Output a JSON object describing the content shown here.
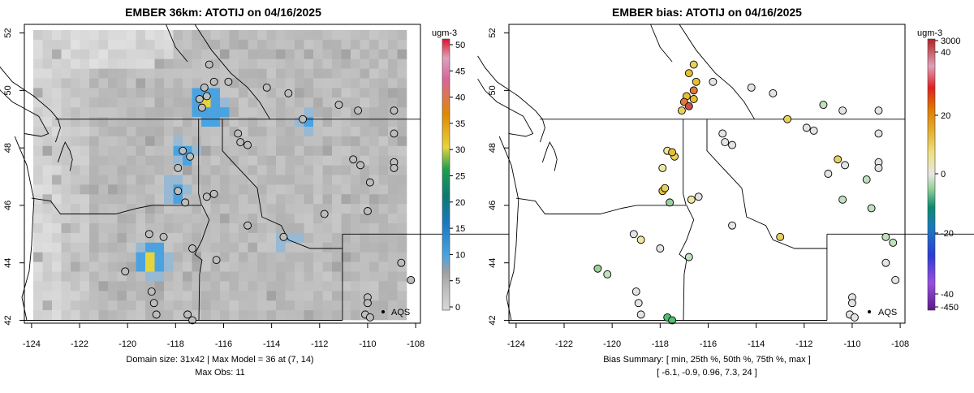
{
  "left_panel": {
    "title": "EMBER 36km: ATOTIJ on 04/16/2025",
    "legend_unit": "ugm-3",
    "legend_ticks": [
      "0",
      "5",
      "10",
      "15",
      "20",
      "25",
      "30",
      "35",
      "40",
      "45",
      "50"
    ],
    "aqs_label": "AQS",
    "footer_line1": "Domain size: 31x42 | Max Model = 36 at (7, 14)",
    "footer_line2": "Max Obs: 11"
  },
  "right_panel": {
    "title": "EMBER bias: ATOTIJ on 04/16/2025",
    "legend_unit": "ugm-3",
    "legend_ticks": [
      "3000",
      "40",
      "20",
      "0",
      "-20",
      "-40",
      "-450"
    ],
    "aqs_label": "AQS",
    "footer_line1": "Bias Summary: [ min, 25th %, 50th %, 75th %, max ]",
    "footer_line2": "[ -6.1,   -0.9,   0.96,   7.3,   24 ]"
  },
  "axes": {
    "x_ticks": [
      "-124",
      "-122",
      "-120",
      "-118",
      "-116",
      "-114",
      "-112",
      "-110",
      "-108"
    ],
    "y_ticks": [
      "42",
      "44",
      "46",
      "48",
      "50",
      "52"
    ]
  },
  "colors": {
    "model_gray": "#cccccc",
    "model_blue": "#4aa3e0",
    "model_orange": "#e08a00",
    "model_yellow": "#e6d43c",
    "bias_max": "#b22222",
    "bias_min": "#5a1a8a"
  },
  "chart_data": [
    {
      "type": "heatmap",
      "title": "EMBER 36km: ATOTIJ on 04/16/2025",
      "xlim": [
        -124.3,
        -107.8
      ],
      "ylim": [
        41.9,
        52.3
      ],
      "x_ticks": [
        -124,
        -122,
        -120,
        -118,
        -116,
        -114,
        -112,
        -110,
        -108
      ],
      "y_ticks": [
        42,
        44,
        46,
        48,
        50,
        52
      ],
      "colorbar": {
        "label": "ugm-3",
        "min": 0,
        "max": 50,
        "ticks": [
          0,
          5,
          10,
          15,
          20,
          25,
          30,
          35,
          40,
          45,
          50
        ]
      },
      "max_model": 36,
      "max_obs": 11,
      "domain_size": "31x42",
      "hotspots": [
        {
          "lon": -118.95,
          "lat": 44.1,
          "value": 36
        },
        {
          "lon": -116.8,
          "lat": 49.6,
          "value": 29
        },
        {
          "lon": -116.55,
          "lat": 49.35,
          "value": 28
        },
        {
          "lon": -117.6,
          "lat": 47.8,
          "value": 14
        },
        {
          "lon": -118.0,
          "lat": 46.5,
          "value": 13
        },
        {
          "lon": -112.6,
          "lat": 48.9,
          "value": 12
        },
        {
          "lon": -113.4,
          "lat": 44.9,
          "value": 11
        }
      ],
      "stations": [
        {
          "lon": -116.6,
          "lat": 50.9
        },
        {
          "lon": -116.8,
          "lat": 50.1
        },
        {
          "lon": -117.0,
          "lat": 49.7
        },
        {
          "lon": -116.7,
          "lat": 49.8
        },
        {
          "lon": -116.9,
          "lat": 49.4
        },
        {
          "lon": -116.4,
          "lat": 50.3
        },
        {
          "lon": -115.8,
          "lat": 50.3
        },
        {
          "lon": -114.2,
          "lat": 50.1
        },
        {
          "lon": -113.3,
          "lat": 49.9
        },
        {
          "lon": -112.7,
          "lat": 49.0
        },
        {
          "lon": -111.2,
          "lat": 49.5
        },
        {
          "lon": -110.4,
          "lat": 49.3
        },
        {
          "lon": -108.9,
          "lat": 49.3
        },
        {
          "lon": -108.9,
          "lat": 48.5
        },
        {
          "lon": -115.4,
          "lat": 48.5
        },
        {
          "lon": -115.3,
          "lat": 48.2
        },
        {
          "lon": -115.0,
          "lat": 48.1
        },
        {
          "lon": -117.7,
          "lat": 47.9
        },
        {
          "lon": -117.4,
          "lat": 47.7
        },
        {
          "lon": -117.9,
          "lat": 47.3
        },
        {
          "lon": -110.6,
          "lat": 47.6
        },
        {
          "lon": -110.3,
          "lat": 47.4
        },
        {
          "lon": -108.9,
          "lat": 47.5
        },
        {
          "lon": -108.9,
          "lat": 47.3
        },
        {
          "lon": -117.9,
          "lat": 46.5
        },
        {
          "lon": -117.6,
          "lat": 46.1
        },
        {
          "lon": -116.7,
          "lat": 46.3
        },
        {
          "lon": -116.4,
          "lat": 46.4
        },
        {
          "lon": -117.3,
          "lat": 44.5
        },
        {
          "lon": -118.5,
          "lat": 44.9
        },
        {
          "lon": -119.1,
          "lat": 45.0
        },
        {
          "lon": -120.1,
          "lat": 43.7
        },
        {
          "lon": -116.3,
          "lat": 44.1
        },
        {
          "lon": -115.0,
          "lat": 45.3
        },
        {
          "lon": -113.5,
          "lat": 44.9
        },
        {
          "lon": -111.8,
          "lat": 45.7
        },
        {
          "lon": -110.0,
          "lat": 45.8
        },
        {
          "lon": -109.9,
          "lat": 46.8
        },
        {
          "lon": -108.6,
          "lat": 44.0
        },
        {
          "lon": -108.2,
          "lat": 43.4
        },
        {
          "lon": -119.0,
          "lat": 43.0
        },
        {
          "lon": -118.9,
          "lat": 42.6
        },
        {
          "lon": -118.8,
          "lat": 42.2
        },
        {
          "lon": -117.5,
          "lat": 42.2
        },
        {
          "lon": -117.3,
          "lat": 42.0
        },
        {
          "lon": -110.0,
          "lat": 42.8
        },
        {
          "lon": -110.0,
          "lat": 42.6
        },
        {
          "lon": -110.1,
          "lat": 42.2
        },
        {
          "lon": -109.9,
          "lat": 42.1
        }
      ]
    },
    {
      "type": "scatter",
      "title": "EMBER bias: ATOTIJ on 04/16/2025",
      "xlim": [
        -124.3,
        -107.8
      ],
      "ylim": [
        41.9,
        52.3
      ],
      "x_ticks": [
        -124,
        -122,
        -120,
        -118,
        -116,
        -114,
        -112,
        -110,
        -108
      ],
      "y_ticks": [
        42,
        44,
        46,
        48,
        50,
        52
      ],
      "colorbar": {
        "label": "ugm-3",
        "ticks": [
          3000,
          40,
          20,
          0,
          -20,
          -40,
          -450
        ]
      },
      "bias_summary": {
        "min": -6.1,
        "p25": -0.9,
        "p50": 0.96,
        "p75": 7.3,
        "max": 24
      },
      "stations": [
        {
          "lon": -116.6,
          "lat": 50.9,
          "bias": 7
        },
        {
          "lon": -116.8,
          "lat": 50.6,
          "bias": 9
        },
        {
          "lon": -116.5,
          "lat": 50.3,
          "bias": 10
        },
        {
          "lon": -116.6,
          "lat": 50.0,
          "bias": 18
        },
        {
          "lon": -116.9,
          "lat": 49.8,
          "bias": 10
        },
        {
          "lon": -116.6,
          "lat": 49.7,
          "bias": 12
        },
        {
          "lon": -117.0,
          "lat": 49.6,
          "bias": 15
        },
        {
          "lon": -116.8,
          "lat": 49.45,
          "bias": 24
        },
        {
          "lon": -117.1,
          "lat": 49.3,
          "bias": 8
        },
        {
          "lon": -115.8,
          "lat": 50.3,
          "bias": 0
        },
        {
          "lon": -114.2,
          "lat": 50.1,
          "bias": 0.5
        },
        {
          "lon": -113.3,
          "lat": 49.9,
          "bias": 0.5
        },
        {
          "lon": -112.7,
          "lat": 49.0,
          "bias": 7
        },
        {
          "lon": -111.2,
          "lat": 49.5,
          "bias": -1
        },
        {
          "lon": -110.4,
          "lat": 49.3,
          "bias": 0.5
        },
        {
          "lon": -108.9,
          "lat": 49.3,
          "bias": -0.5
        },
        {
          "lon": -108.9,
          "lat": 48.5,
          "bias": -0.5
        },
        {
          "lon": -111.9,
          "lat": 48.7,
          "bias": 0.5
        },
        {
          "lon": -111.6,
          "lat": 48.6,
          "bias": 0.5
        },
        {
          "lon": -115.4,
          "lat": 48.5,
          "bias": 0.5
        },
        {
          "lon": -115.3,
          "lat": 48.2,
          "bias": 0.5
        },
        {
          "lon": -115.0,
          "lat": 48.1,
          "bias": 0.5
        },
        {
          "lon": -117.7,
          "lat": 47.9,
          "bias": 2
        },
        {
          "lon": -117.4,
          "lat": 47.7,
          "bias": 7
        },
        {
          "lon": -117.5,
          "lat": 47.85,
          "bias": 9
        },
        {
          "lon": -117.9,
          "lat": 47.3,
          "bias": 5
        },
        {
          "lon": -110.6,
          "lat": 47.6,
          "bias": 7
        },
        {
          "lon": -110.3,
          "lat": 47.4,
          "bias": 0
        },
        {
          "lon": -108.9,
          "lat": 47.5,
          "bias": 0
        },
        {
          "lon": -108.9,
          "lat": 47.3,
          "bias": 0
        },
        {
          "lon": -111.0,
          "lat": 47.1,
          "bias": 0
        },
        {
          "lon": -109.4,
          "lat": 46.9,
          "bias": -1
        },
        {
          "lon": -117.9,
          "lat": 46.5,
          "bias": 9
        },
        {
          "lon": -117.8,
          "lat": 46.6,
          "bias": 8
        },
        {
          "lon": -117.6,
          "lat": 46.1,
          "bias": -4
        },
        {
          "lon": -116.7,
          "lat": 46.2,
          "bias": 3
        },
        {
          "lon": -116.4,
          "lat": 46.3,
          "bias": 0.5
        },
        {
          "lon": -110.4,
          "lat": 46.2,
          "bias": -1
        },
        {
          "lon": -109.2,
          "lat": 45.9,
          "bias": -1
        },
        {
          "lon": -115.0,
          "lat": 45.3,
          "bias": 0.5
        },
        {
          "lon": -113.0,
          "lat": 44.9,
          "bias": 8
        },
        {
          "lon": -119.1,
          "lat": 45.0,
          "bias": 0.5
        },
        {
          "lon": -118.8,
          "lat": 44.8,
          "bias": 3
        },
        {
          "lon": -118.0,
          "lat": 44.5,
          "bias": 0
        },
        {
          "lon": -116.8,
          "lat": 44.2,
          "bias": -2
        },
        {
          "lon": -120.6,
          "lat": 43.8,
          "bias": -3
        },
        {
          "lon": -120.2,
          "lat": 43.6,
          "bias": -2
        },
        {
          "lon": -119.0,
          "lat": 43.0,
          "bias": 0.5
        },
        {
          "lon": -118.9,
          "lat": 42.6,
          "bias": 0.5
        },
        {
          "lon": -118.8,
          "lat": 42.2,
          "bias": 0.5
        },
        {
          "lon": -117.7,
          "lat": 42.1,
          "bias": -5
        },
        {
          "lon": -117.5,
          "lat": 42.0,
          "bias": -6.1
        },
        {
          "lon": -108.6,
          "lat": 44.9,
          "bias": -1
        },
        {
          "lon": -108.3,
          "lat": 44.7,
          "bias": -2
        },
        {
          "lon": -108.6,
          "lat": 44.0,
          "bias": 0.5
        },
        {
          "lon": -108.2,
          "lat": 43.4,
          "bias": 0
        },
        {
          "lon": -110.0,
          "lat": 42.8,
          "bias": 0
        },
        {
          "lon": -110.0,
          "lat": 42.6,
          "bias": 0
        },
        {
          "lon": -110.1,
          "lat": 42.2,
          "bias": 0
        },
        {
          "lon": -109.9,
          "lat": 42.1,
          "bias": 0
        }
      ]
    }
  ]
}
